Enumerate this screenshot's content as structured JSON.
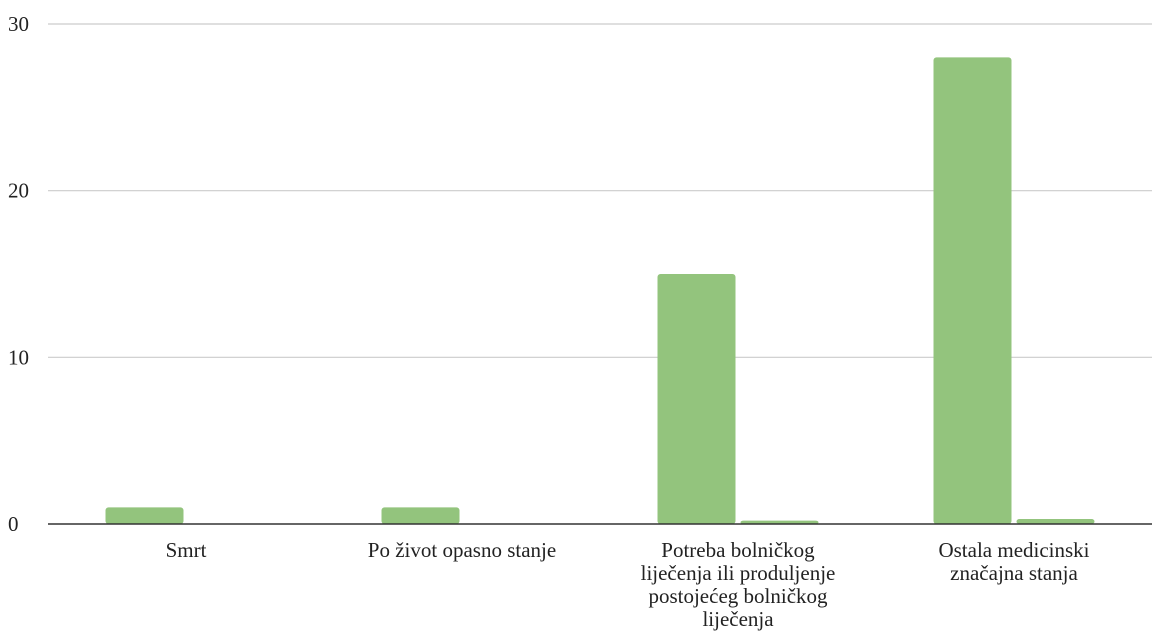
{
  "chart_data": {
    "type": "bar",
    "title": "",
    "xlabel": "",
    "ylabel": "",
    "ylim": [
      0,
      30
    ],
    "yticks": [
      0,
      10,
      20,
      30
    ],
    "grid": true,
    "legend": "none",
    "categories": [
      [
        "Smrt"
      ],
      [
        "Po život opasno stanje"
      ],
      [
        "Potreba bolničkog",
        "liječenja ili produljenje",
        "postojećeg bolničkog",
        "liječenja"
      ],
      [
        "Ostala medicinski",
        "značajna stanja"
      ]
    ],
    "series": [
      {
        "values": [
          1,
          1,
          15,
          28
        ],
        "color": "#93c47d"
      },
      {
        "values": [
          0,
          0,
          0.2,
          0.3
        ],
        "color": "#93c47d"
      }
    ]
  }
}
